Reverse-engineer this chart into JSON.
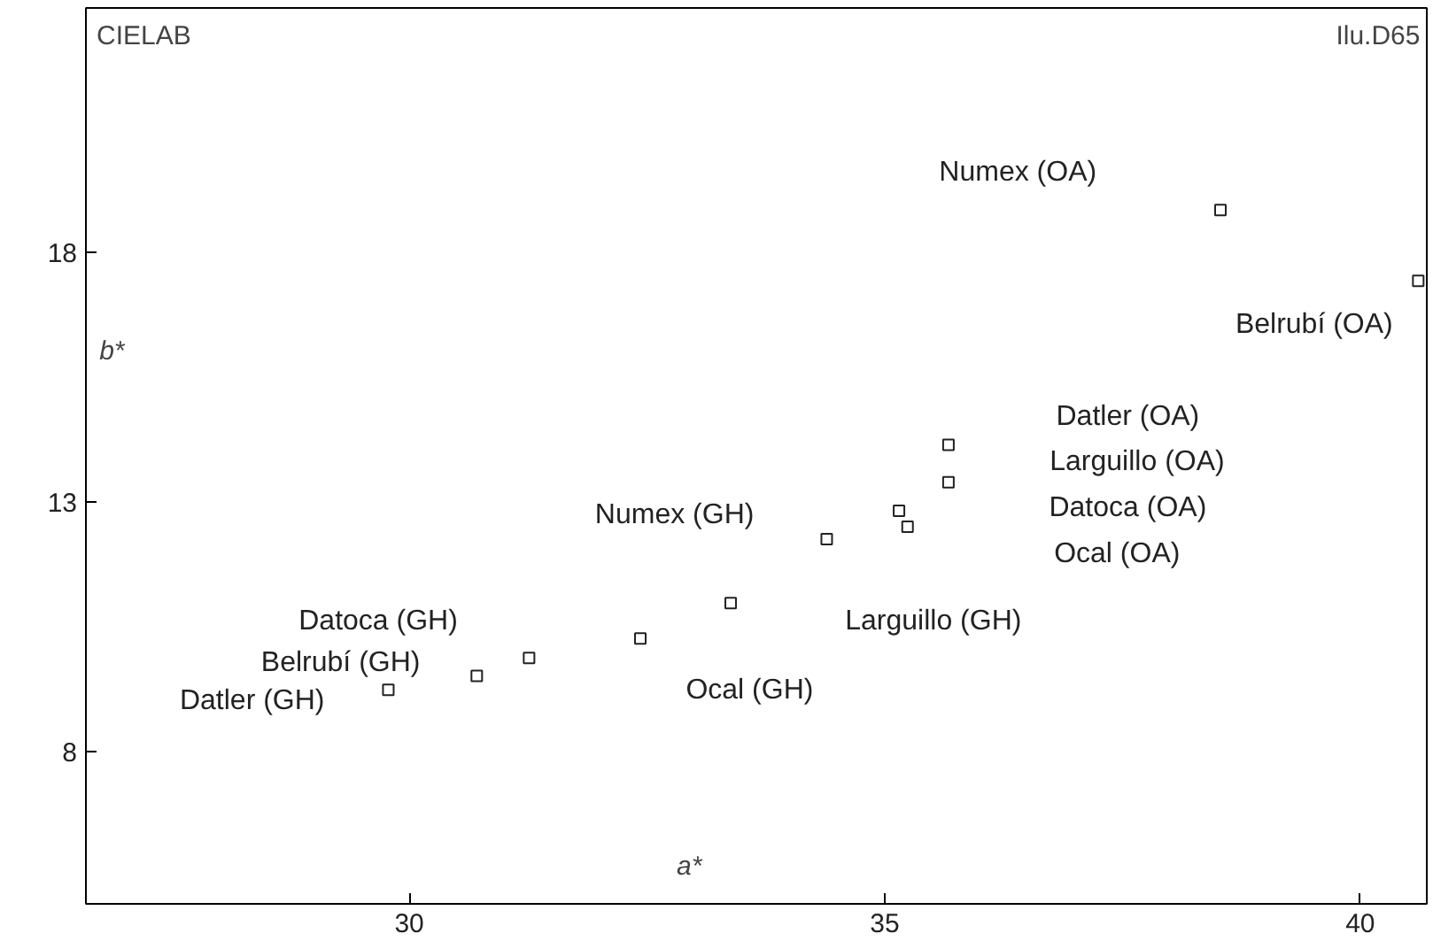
{
  "chart_data": {
    "type": "scatter",
    "marker": "square",
    "color": "#222222",
    "grid": false,
    "xlabel": "a*",
    "ylabel": "b*",
    "x": [
      38.53,
      40.61,
      35.67,
      35.67,
      35.15,
      35.24,
      34.39,
      33.38,
      32.43,
      31.26,
      30.71,
      29.78
    ],
    "values": [
      18.85,
      17.43,
      14.14,
      13.39,
      12.82,
      12.5,
      12.25,
      10.97,
      10.26,
      9.87,
      9.51,
      9.23
    ],
    "xlim": [
      26.6,
      40.7
    ],
    "ylim": [
      4.94,
      22.9
    ],
    "xticks": [
      30,
      35,
      40
    ],
    "yticks": [
      8,
      13,
      18
    ],
    "annotations": [
      "CIELAB",
      "Ilu.D65",
      "Numex (OA)",
      "Belrubí (OA)",
      "Datler (OA)",
      "Larguillo (OA)",
      "Datoca (OA)",
      "Ocal (OA)",
      "Numex (GH)",
      "Larguillo (GH)",
      "Datoca (GH)",
      "Belrubí (GH)",
      "Datler (GH)",
      "Ocal (GH)"
    ]
  }
}
